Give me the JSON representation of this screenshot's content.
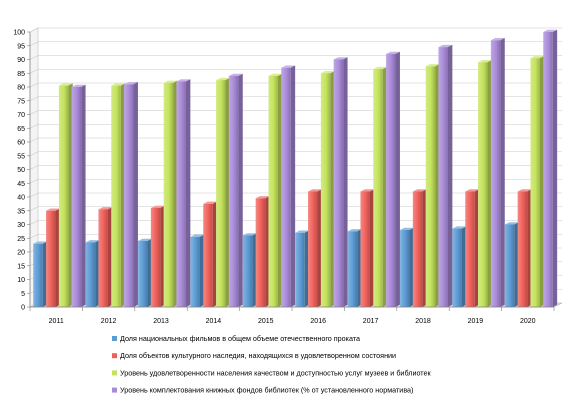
{
  "chart_data": {
    "type": "bar",
    "style": "3d-clustered-column",
    "categories": [
      "2011",
      "2012",
      "2013",
      "2014",
      "2015",
      "2016",
      "2017",
      "2018",
      "2019",
      "2020"
    ],
    "ylim": [
      0,
      100
    ],
    "yticks": [
      0,
      5,
      10,
      15,
      20,
      25,
      30,
      35,
      40,
      45,
      50,
      55,
      60,
      65,
      70,
      75,
      80,
      85,
      90,
      95,
      100
    ],
    "grid": true,
    "legend_position": "bottom",
    "series": [
      {
        "name": "Доля национальных фильмов в общем объеме отечественного проката",
        "color": "#5b9bd5",
        "values": [
          23,
          23.5,
          24,
          25.5,
          26,
          27,
          27.5,
          28,
          28.5,
          30
        ]
      },
      {
        "name": "Доля объектов культурного наследия, находящихся в удовлетворенном состоянии",
        "color": "#f0605a",
        "values": [
          35,
          35.5,
          36,
          37.5,
          39.5,
          42,
          42,
          42,
          42,
          42
        ]
      },
      {
        "name": "Уровень удовлетворенности населения качеством и доступностью услуг музеев и библиотек",
        "color": "#c4e35c",
        "values": [
          80.5,
          80.5,
          81.5,
          82.5,
          84,
          85,
          86.5,
          87.5,
          89,
          90.5
        ]
      },
      {
        "name": "Уровень комплектования книжных фондов библиотек (% от установленного норматива)",
        "color": "#a98ad9",
        "values": [
          80,
          81,
          82,
          84,
          87,
          90,
          92,
          94.5,
          97,
          100
        ]
      }
    ]
  }
}
